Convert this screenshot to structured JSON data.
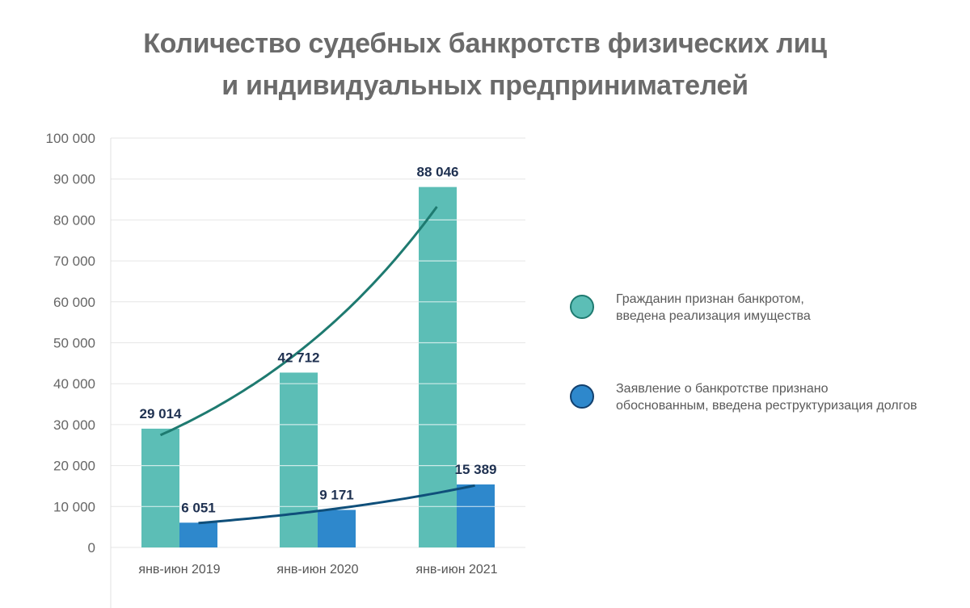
{
  "chart_data": {
    "type": "bar",
    "title": [
      "Количество судебных банкротств физических лиц",
      "и индивидуальных предпринимателей"
    ],
    "categories": [
      "янв-июн 2019",
      "янв-июн 2020",
      "янв-июн 2021"
    ],
    "series": [
      {
        "name": [
          "Гражданин признан банкротом,",
          "введена реализация имущества"
        ],
        "values": [
          29014,
          42712,
          88046
        ],
        "labels": [
          "29 014",
          "42 712",
          "88 046"
        ],
        "color": "#5cbeb6",
        "border": "#1e7a70",
        "trend_color": "#1e7a70"
      },
      {
        "name": [
          "Заявление о банкротстве признано",
          "обоснованным, введена реструктуризация долгов"
        ],
        "values": [
          6051,
          9171,
          15389
        ],
        "labels": [
          "6 051",
          "9 171",
          "15 389"
        ],
        "color": "#2e88cc",
        "border": "#12406e",
        "trend_color": "#0f4f7a"
      }
    ],
    "ylim": [
      0,
      100000
    ],
    "yticks": [
      0,
      10000,
      20000,
      30000,
      40000,
      50000,
      60000,
      70000,
      80000,
      90000,
      100000
    ],
    "ytick_labels": [
      "0",
      "10 000",
      "20 000",
      "30 000",
      "40 000",
      "50 000",
      "60 000",
      "70 000",
      "80 000",
      "90 000",
      "100 000"
    ],
    "grid": true,
    "trendlines": "exponential",
    "legend": "right"
  }
}
